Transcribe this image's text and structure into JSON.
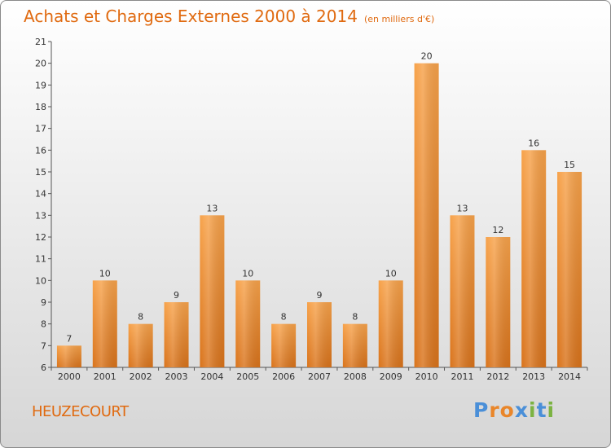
{
  "header": {
    "title": "Achats et Charges Externes 2000 à 2014",
    "subtitle": "(en milliers d'€)"
  },
  "footer": {
    "commune": "HEUZECOURT",
    "brand": "Proxiti"
  },
  "colors": {
    "bar_top": "#f7a24a",
    "bar_bottom": "#d9731b",
    "title": "#e06a10"
  },
  "chart_data": {
    "type": "bar",
    "title": "Achats et Charges Externes 2000 à 2014",
    "subtitle": "(en milliers d'€)",
    "categories": [
      "2000",
      "2001",
      "2002",
      "2003",
      "2004",
      "2005",
      "2006",
      "2007",
      "2008",
      "2009",
      "2010",
      "2011",
      "2012",
      "2013",
      "2014"
    ],
    "values": [
      7,
      10,
      8,
      9,
      13,
      10,
      8,
      9,
      8,
      10,
      20,
      13,
      12,
      16,
      15
    ],
    "ylim": [
      6,
      21
    ],
    "yticks": [
      6,
      7,
      8,
      9,
      10,
      11,
      12,
      13,
      14,
      15,
      16,
      17,
      18,
      19,
      20,
      21
    ],
    "grid": false,
    "legend": "none"
  }
}
